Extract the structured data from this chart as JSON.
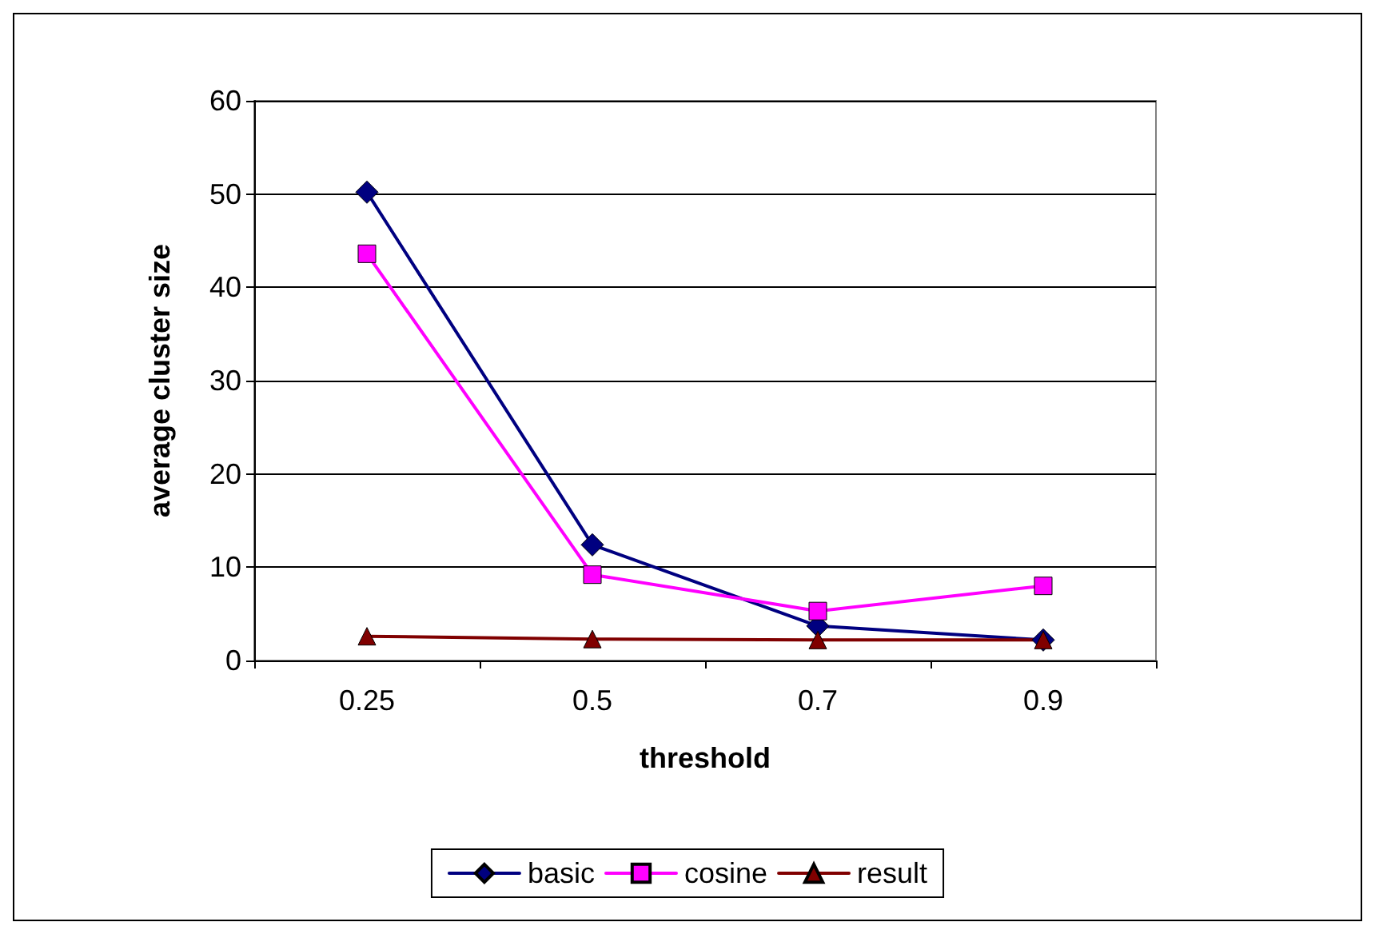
{
  "chart_data": {
    "type": "line",
    "xlabel": "threshold",
    "ylabel": "average cluster size",
    "categories": [
      "0.25",
      "0.5",
      "0.7",
      "0.9"
    ],
    "series": [
      {
        "name": "basic",
        "color": "#000080",
        "marker": "diamond",
        "values": [
          50.2,
          12.4,
          3.7,
          2.2
        ]
      },
      {
        "name": "cosine",
        "color": "#ff00ff",
        "marker": "square",
        "values": [
          43.6,
          9.2,
          5.3,
          8.0
        ]
      },
      {
        "name": "result",
        "color": "#800000",
        "marker": "triangle",
        "values": [
          2.6,
          2.3,
          2.2,
          2.2
        ]
      }
    ],
    "ylim": [
      0,
      60
    ],
    "yticks": [
      0,
      10,
      20,
      30,
      40,
      50,
      60
    ],
    "grid": "y",
    "legend": "bottom",
    "line_style": "solid"
  }
}
